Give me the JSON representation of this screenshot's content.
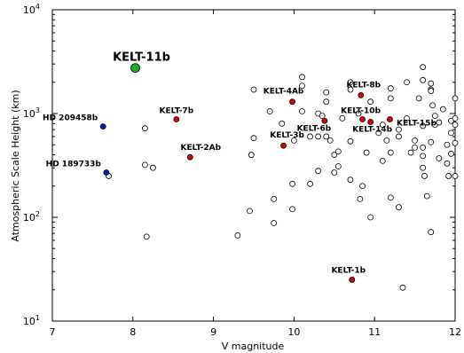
{
  "chart_data": {
    "type": "scatter",
    "xlabel": "V magnitude",
    "ylabel": "Atmospheric Scale Height (km)",
    "xlim": [
      7,
      12
    ],
    "ylim": [
      10,
      10000
    ],
    "y_scale": "log",
    "x_ticks": [
      "7",
      "8",
      "9",
      "10",
      "11",
      "12"
    ],
    "y_ticks": [
      {
        "value": 10,
        "mantissa": "10",
        "exp": "1"
      },
      {
        "value": 100,
        "mantissa": "10",
        "exp": "2"
      },
      {
        "value": 1000,
        "mantissa": "10",
        "exp": "3"
      },
      {
        "value": 10000,
        "mantissa": "10",
        "exp": "4"
      }
    ],
    "grid": false,
    "colors": {
      "kelt": "#dd0000",
      "hd": "#0022cc",
      "kelt11": "#22aa22",
      "other": "#ffffff",
      "edge": "#000000"
    },
    "series": [
      {
        "role": "other",
        "points": [
          [
            7.7,
            250
          ],
          [
            8.15,
            720
          ],
          [
            8.15,
            320
          ],
          [
            8.25,
            300
          ],
          [
            8.17,
            65
          ],
          [
            9.3,
            67
          ],
          [
            9.45,
            115
          ],
          [
            9.47,
            400
          ],
          [
            9.5,
            580
          ],
          [
            9.5,
            1700
          ],
          [
            9.7,
            1050
          ],
          [
            9.75,
            150
          ],
          [
            9.75,
            88
          ],
          [
            9.85,
            800
          ],
          [
            9.98,
            210
          ],
          [
            9.98,
            120
          ],
          [
            10.0,
            550
          ],
          [
            10.1,
            2250
          ],
          [
            10.1,
            1850
          ],
          [
            10.1,
            1050
          ],
          [
            10.2,
            600
          ],
          [
            10.2,
            210
          ],
          [
            10.3,
            1000
          ],
          [
            10.3,
            600
          ],
          [
            10.3,
            280
          ],
          [
            10.35,
            950
          ],
          [
            10.4,
            1600
          ],
          [
            10.4,
            1300
          ],
          [
            10.4,
            600
          ],
          [
            10.45,
            550
          ],
          [
            10.5,
            400
          ],
          [
            10.5,
            270
          ],
          [
            10.55,
            310
          ],
          [
            10.55,
            430
          ],
          [
            10.6,
            900
          ],
          [
            10.7,
            2000
          ],
          [
            10.7,
            1700
          ],
          [
            10.7,
            540
          ],
          [
            10.7,
            230
          ],
          [
            10.8,
            1000
          ],
          [
            10.82,
            150
          ],
          [
            10.85,
            200
          ],
          [
            10.9,
            420
          ],
          [
            10.95,
            100
          ],
          [
            10.95,
            1300
          ],
          [
            11.05,
            650
          ],
          [
            11.1,
            780
          ],
          [
            11.1,
            350
          ],
          [
            11.15,
            550
          ],
          [
            11.2,
            1750
          ],
          [
            11.2,
            1400
          ],
          [
            11.2,
            420
          ],
          [
            11.2,
            155
          ],
          [
            11.3,
            700
          ],
          [
            11.3,
            600
          ],
          [
            11.3,
            125
          ],
          [
            11.35,
            21
          ],
          [
            11.4,
            2000
          ],
          [
            11.4,
            900
          ],
          [
            11.45,
            420
          ],
          [
            11.5,
            550
          ],
          [
            11.5,
            470
          ],
          [
            11.55,
            1400
          ],
          [
            11.6,
            2800
          ],
          [
            11.6,
            2100
          ],
          [
            11.6,
            760
          ],
          [
            11.6,
            470
          ],
          [
            11.6,
            390
          ],
          [
            11.6,
            300
          ],
          [
            11.62,
            250
          ],
          [
            11.65,
            160
          ],
          [
            11.7,
            1950
          ],
          [
            11.7,
            1700
          ],
          [
            11.7,
            1650
          ],
          [
            11.7,
            530
          ],
          [
            11.7,
            72
          ],
          [
            11.72,
            1200
          ],
          [
            11.75,
            950
          ],
          [
            11.75,
            780
          ],
          [
            11.8,
            370
          ],
          [
            11.8,
            820
          ],
          [
            11.85,
            1100
          ],
          [
            11.9,
            500
          ],
          [
            11.9,
            330
          ],
          [
            11.92,
            250
          ],
          [
            11.95,
            850
          ],
          [
            11.95,
            650
          ],
          [
            11.95,
            410
          ],
          [
            12.0,
            1400
          ],
          [
            12.0,
            900
          ],
          [
            12.0,
            780
          ],
          [
            12.0,
            520
          ],
          [
            12.0,
            250
          ]
        ]
      },
      {
        "role": "kelt",
        "points": [
          {
            "name": "KELT-7b",
            "x": 8.54,
            "y": 880
          },
          {
            "name": "KELT-2Ab",
            "x": 8.71,
            "y": 380
          },
          {
            "name": "KELT-3b",
            "x": 9.87,
            "y": 490
          },
          {
            "name": "KELT-4Ab",
            "x": 9.98,
            "y": 1300
          },
          {
            "name": "KELT-6b",
            "x": 10.38,
            "y": 850
          },
          {
            "name": "KELT-8b",
            "x": 10.83,
            "y": 1500
          },
          {
            "name": "KELT-10b",
            "x": 10.85,
            "y": 880
          },
          {
            "name": "KELT-14b",
            "x": 10.95,
            "y": 830
          },
          {
            "name": "KELT-15b",
            "x": 11.19,
            "y": 880
          },
          {
            "name": "KELT-1b",
            "x": 10.72,
            "y": 25
          }
        ]
      },
      {
        "role": "hd",
        "points": [
          {
            "name": "HD 209458b",
            "x": 7.63,
            "y": 750
          },
          {
            "name": "HD 189733b",
            "x": 7.67,
            "y": 270
          }
        ]
      },
      {
        "role": "kelt11",
        "points": [
          {
            "name": "KELT-11b",
            "x": 8.03,
            "y": 2750
          }
        ]
      }
    ]
  }
}
